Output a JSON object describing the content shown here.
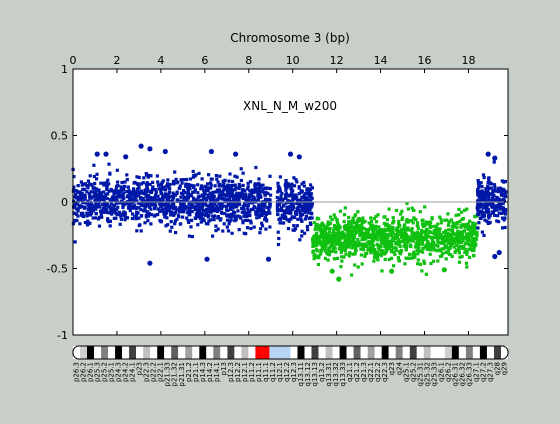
{
  "chart_data": {
    "type": "scatter",
    "title": "Chromosome 3 (bp)",
    "annotation": "XNL_N_M_w200",
    "xlim": [
      0,
      19.8
    ],
    "ylim": [
      -1,
      1
    ],
    "x_ticks": [
      "0",
      "2",
      "4",
      "6",
      "8",
      "10",
      "12",
      "14",
      "16",
      "18"
    ],
    "y_ticks": [
      "1",
      "0.5",
      "0",
      "-0.5",
      "-1"
    ],
    "reference_line_y": 0,
    "series": [
      {
        "color": "#0018a8",
        "x_range": [
          0.0,
          9.0
        ],
        "center": 0.0,
        "spread": 0.12,
        "count": 1300
      },
      {
        "color": "#0018a8",
        "x_range": [
          9.3,
          10.9
        ],
        "center": -0.02,
        "spread": 0.12,
        "count": 260
      },
      {
        "color": "#10c010",
        "x_range": [
          10.9,
          18.4
        ],
        "center": -0.27,
        "spread": 0.11,
        "count": 1200
      },
      {
        "color": "#0018a8",
        "x_range": [
          18.4,
          19.7
        ],
        "center": 0.0,
        "spread": 0.12,
        "count": 220
      }
    ],
    "outliers": [
      {
        "x": 1.1,
        "y": 0.36
      },
      {
        "x": 1.5,
        "y": 0.36
      },
      {
        "x": 3.1,
        "y": 0.42
      },
      {
        "x": 2.4,
        "y": 0.34
      },
      {
        "x": 3.5,
        "y": 0.4
      },
      {
        "x": 4.2,
        "y": 0.38
      },
      {
        "x": 6.3,
        "y": 0.38
      },
      {
        "x": 7.4,
        "y": 0.36
      },
      {
        "x": 3.5,
        "y": -0.46
      },
      {
        "x": 6.1,
        "y": -0.43
      },
      {
        "x": 8.9,
        "y": -0.43
      },
      {
        "x": 9.9,
        "y": 0.36
      },
      {
        "x": 10.3,
        "y": 0.34
      },
      {
        "x": 11.8,
        "y": -0.52
      },
      {
        "x": 12.1,
        "y": -0.58
      },
      {
        "x": 14.5,
        "y": -0.52
      },
      {
        "x": 16.9,
        "y": -0.51
      },
      {
        "x": 18.9,
        "y": 0.36
      },
      {
        "x": 19.2,
        "y": 0.33
      },
      {
        "x": 19.2,
        "y": -0.41
      },
      {
        "x": 19.4,
        "y": -0.38
      }
    ]
  },
  "ideogram": {
    "bands": [
      "p26.3",
      "p26.2",
      "p26.1",
      "p25.3",
      "p25.2",
      "p25.1",
      "p24.3",
      "p24.2",
      "p24.1",
      "p23",
      "p22.3",
      "p22.2",
      "p22.1",
      "p21.33",
      "p21.32",
      "p21.31",
      "p21.2",
      "p21.1",
      "p14.3",
      "p14.2",
      "p14.1",
      "p13",
      "p12.3",
      "p12.2",
      "p12.1",
      "p11.2",
      "p11.1",
      "q11.1",
      "q11.2",
      "q12.1",
      "q12.2",
      "q12.3",
      "q13.11",
      "q13.12",
      "q13.13",
      "q13.2",
      "q13.31",
      "q13.32",
      "q13.33",
      "q21.1",
      "q21.2",
      "q21.3",
      "q22.1",
      "q22.2",
      "q22.3",
      "q23",
      "q24",
      "q25.1",
      "q25.2",
      "q25.31",
      "q25.32",
      "q25.33",
      "q26.1",
      "q26.2",
      "q26.31",
      "q26.32",
      "q26.33",
      "q27.1",
      "q27.2",
      "q27.3",
      "q28",
      "q29"
    ]
  }
}
